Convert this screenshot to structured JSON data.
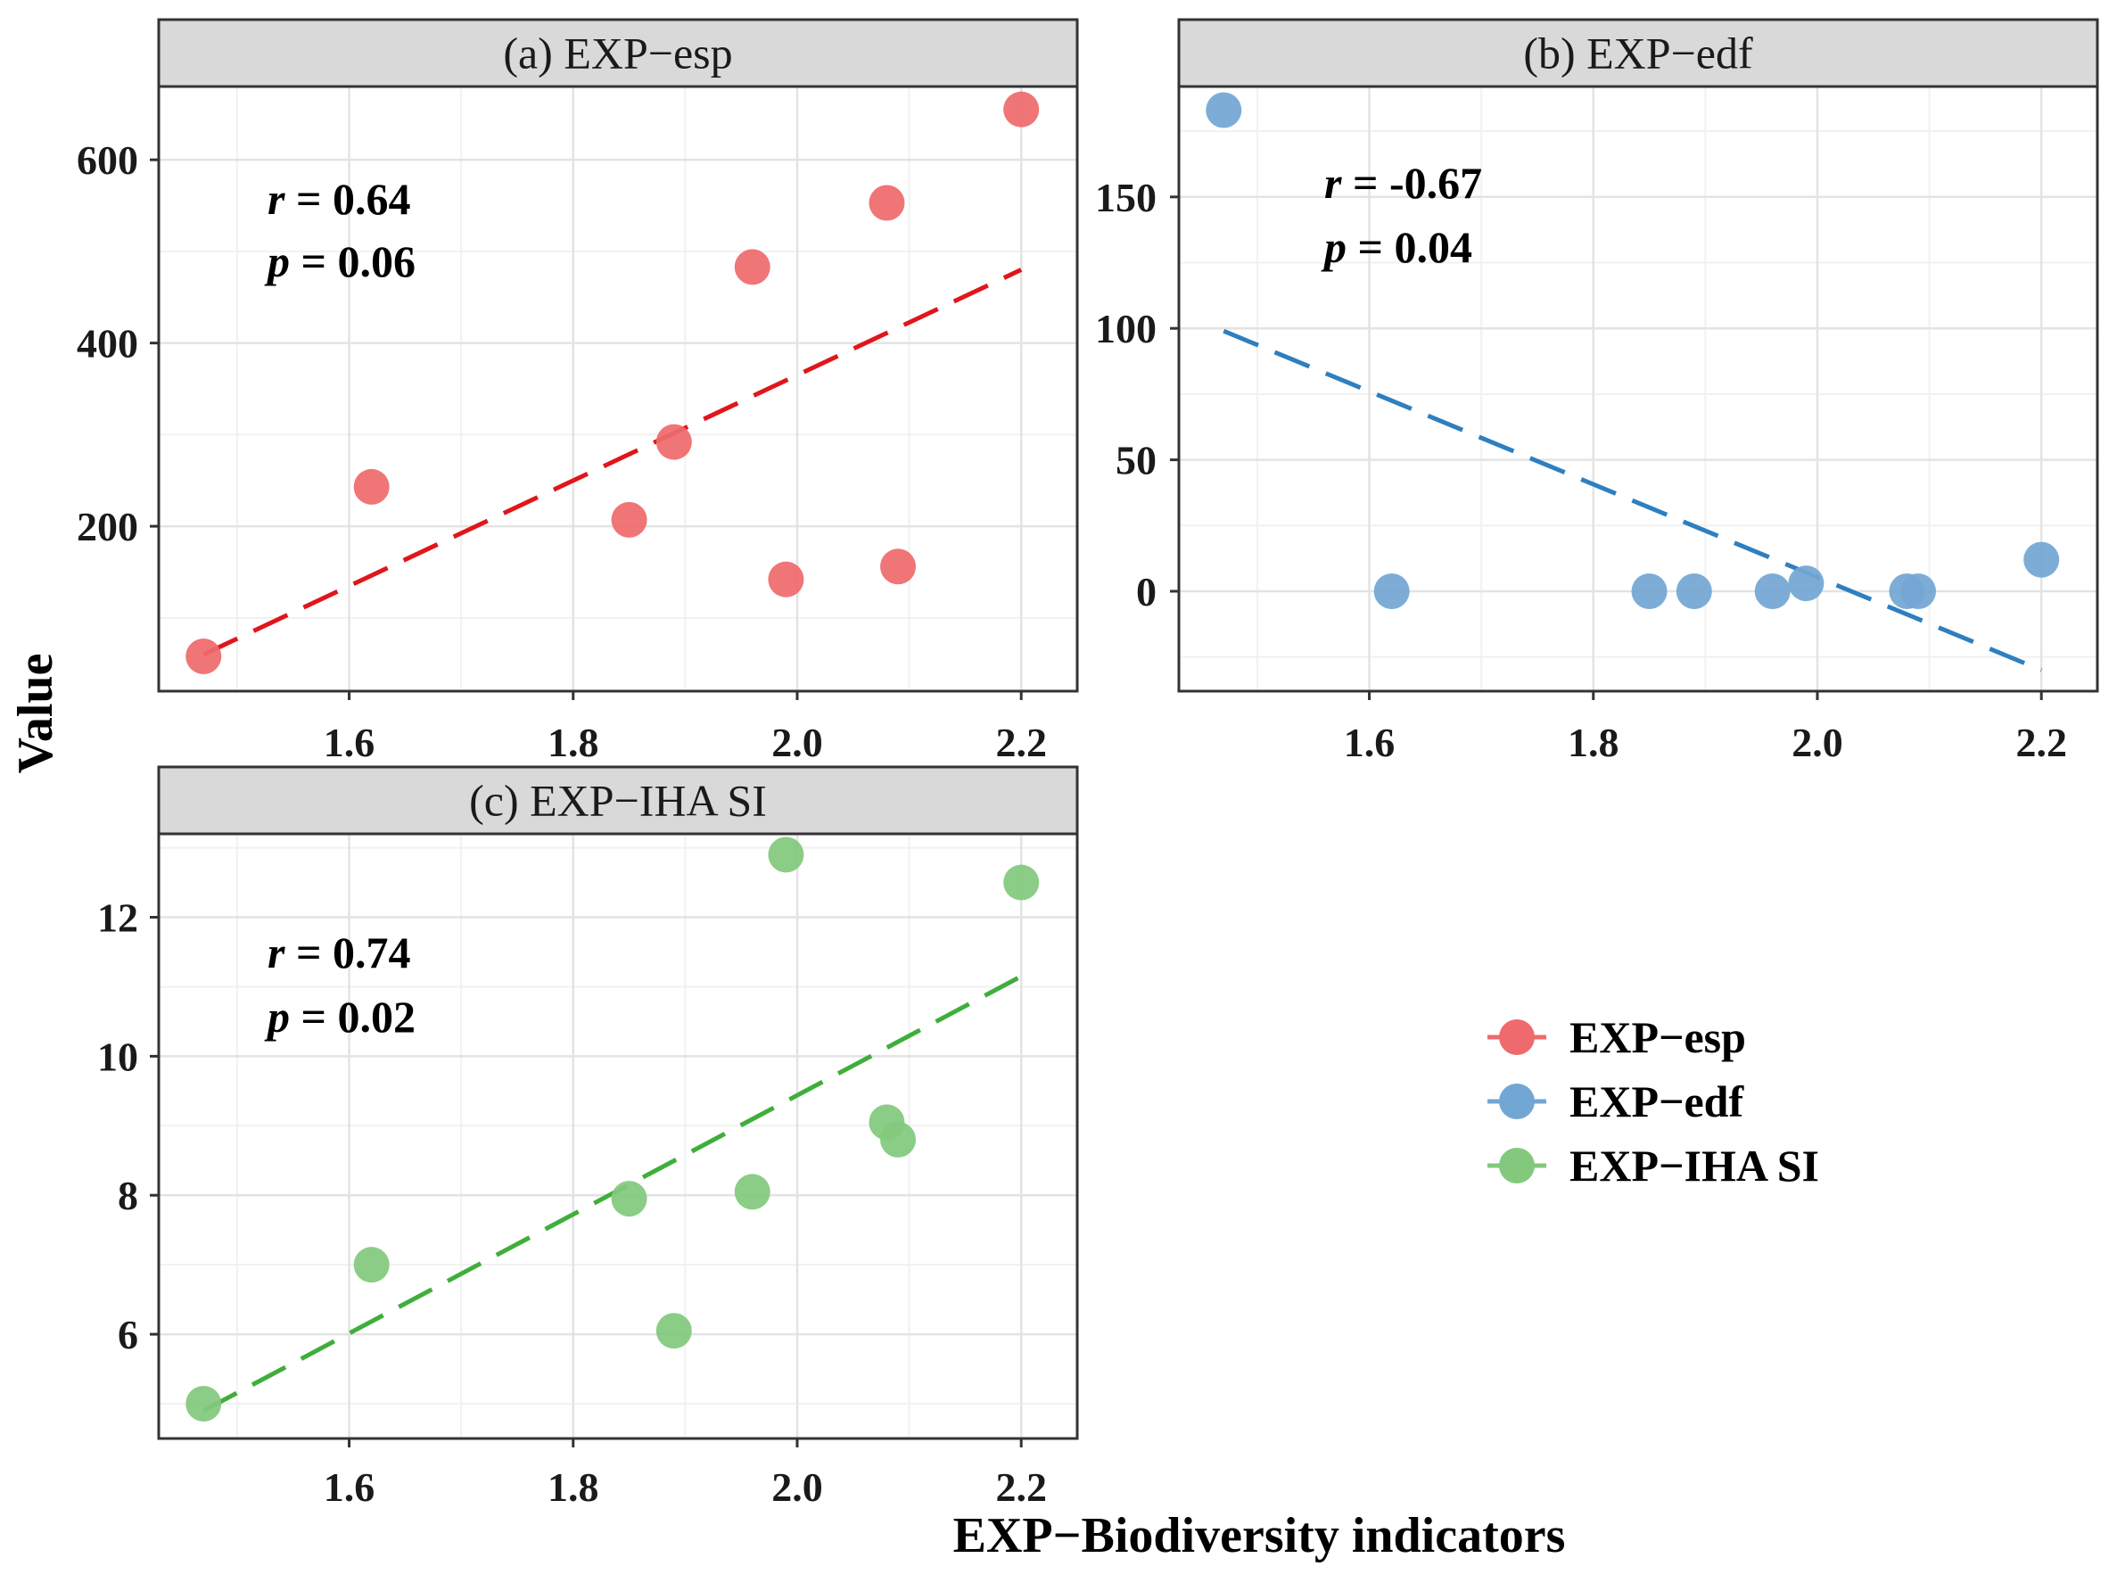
{
  "chart_data": {
    "type": "scatter",
    "xlabel": "EXP−Biodiversity indicators",
    "ylabel": "Value",
    "xlim": [
      1.43,
      2.25
    ],
    "xticks": [
      1.6,
      1.8,
      2.0,
      2.2
    ],
    "xtick_labels": [
      "1.6",
      "1.8",
      "2.0",
      "2.2"
    ],
    "legend": {
      "position": "right",
      "entries": [
        {
          "label": "EXP−esp",
          "color": "#ef6a6d"
        },
        {
          "label": "EXP−edf",
          "color": "#73a7d3"
        },
        {
          "label": "EXP−IHA SI",
          "color": "#82c97d"
        }
      ]
    },
    "panels": [
      {
        "key": "a",
        "title": "(a) EXP−esp",
        "point_color": "#ef6a6d",
        "line_color": "#e0161b",
        "ylim": [
          20,
          680
        ],
        "yticks": [
          200,
          400,
          600
        ],
        "ytick_labels": [
          "200",
          "400",
          "600"
        ],
        "x": [
          1.47,
          1.62,
          1.85,
          1.89,
          1.96,
          1.99,
          2.08,
          2.09,
          2.2
        ],
        "y": [
          58,
          243,
          207,
          292,
          483,
          142,
          553,
          156,
          655
        ],
        "fit": {
          "x": [
            1.47,
            2.2
          ],
          "y": [
            60,
            480
          ]
        },
        "r_label": "r",
        "r_value": " = 0.64",
        "p_label": "p",
        "p_value": " = 0.06"
      },
      {
        "key": "b",
        "title": "(b) EXP−edf",
        "point_color": "#73a7d3",
        "line_color": "#2f7fbf",
        "ylim": [
          -38,
          192
        ],
        "yticks": [
          0,
          50,
          100,
          150
        ],
        "ytick_labels": [
          "0",
          "50",
          "100",
          "150"
        ],
        "x": [
          1.47,
          1.62,
          1.85,
          1.89,
          1.96,
          1.99,
          2.08,
          2.09,
          2.2
        ],
        "y": [
          183,
          0,
          0,
          0,
          0,
          3,
          0,
          0,
          12
        ],
        "fit": {
          "x": [
            1.47,
            2.2
          ],
          "y": [
            99,
            -30
          ]
        },
        "r_label": "r",
        "r_value": " = -0.67",
        "p_label": "p",
        "p_value": " = 0.04"
      },
      {
        "key": "c",
        "title": "(c) EXP−IHA SI",
        "point_color": "#82c97d",
        "line_color": "#3fae3a",
        "ylim": [
          4.5,
          13.2
        ],
        "yticks": [
          6,
          8,
          10,
          12
        ],
        "ytick_labels": [
          "6",
          "8",
          "10",
          "12"
        ],
        "x": [
          1.47,
          1.62,
          1.85,
          1.89,
          1.96,
          1.99,
          2.08,
          2.09,
          2.2
        ],
        "y": [
          5.0,
          7.0,
          7.95,
          6.05,
          8.05,
          12.9,
          9.05,
          8.8,
          12.5
        ],
        "fit": {
          "x": [
            1.47,
            2.2
          ],
          "y": [
            4.9,
            11.15
          ]
        },
        "r_label": "r",
        "r_value": " = 0.74",
        "p_label": "p",
        "p_value": " = 0.02"
      }
    ]
  }
}
